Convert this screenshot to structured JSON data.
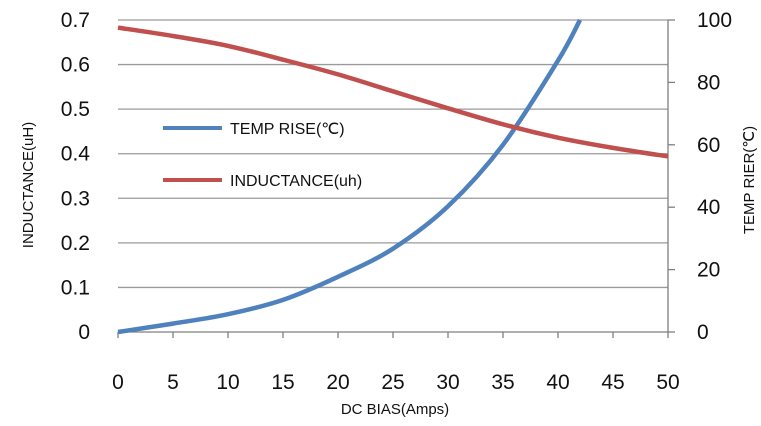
{
  "chart_data": {
    "type": "line",
    "x": [
      0,
      5,
      10,
      15,
      20,
      25,
      30,
      35,
      40,
      45,
      50
    ],
    "xlabel": "DC  BIAS(Amps)",
    "xlim": [
      0,
      50
    ],
    "x_ticks": [
      "0",
      "5",
      "10",
      "15",
      "20",
      "25",
      "30",
      "35",
      "40",
      "45",
      "50"
    ],
    "ylabel_left": "INDUCTANCE(uH)",
    "ylim_left": [
      0,
      0.7
    ],
    "y_ticks_left": [
      "0",
      "0.1",
      "0.2",
      "0.3",
      "0.4",
      "0.5",
      "0.6",
      "0.7"
    ],
    "ylabel_right": "TEMP RIER(℃)",
    "ylim_right": [
      0,
      100
    ],
    "y_ticks_right": [
      "0",
      "20",
      "40",
      "60",
      "80",
      "100"
    ],
    "grid": true,
    "legend_position": "center-left",
    "series": [
      {
        "name": "TEMP RISE(℃)",
        "axis": "right",
        "color": "#4f81bd",
        "x": [
          0,
          5,
          10,
          15,
          20,
          25,
          30,
          35,
          40,
          42
        ],
        "values": [
          0,
          2.7,
          5.7,
          10.3,
          17.7,
          26.7,
          40.3,
          60,
          87,
          100
        ]
      },
      {
        "name": "INDUCTANCE(uh)",
        "axis": "left",
        "color": "#c0504d",
        "x": [
          0,
          5,
          10,
          15,
          20,
          25,
          30,
          35,
          40,
          45,
          50
        ],
        "values": [
          0.683,
          0.664,
          0.642,
          0.611,
          0.578,
          0.54,
          0.502,
          0.466,
          0.436,
          0.413,
          0.394
        ]
      }
    ]
  }
}
